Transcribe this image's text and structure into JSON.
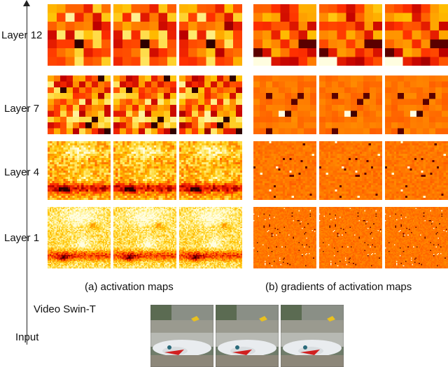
{
  "layers": [
    "Layer 12",
    "Layer 7",
    "Layer 4",
    "Layer 1"
  ],
  "captions": {
    "activation": "(a) activation maps",
    "gradients": "(b) gradients of activation maps"
  },
  "model_label": "Video Swin-T",
  "input_label": "Input",
  "colormap": {
    "name": "YlOrRd-hot",
    "stops": [
      "#fffde0",
      "#ffeb70",
      "#ffc000",
      "#ff8000",
      "#ff3000",
      "#c00000",
      "#300000"
    ]
  },
  "grid_resolution": {
    "Layer 12": 7,
    "Layer 7": 10,
    "Layer 4": 28,
    "Layer 1": 56
  },
  "input_frames_count": 3
}
